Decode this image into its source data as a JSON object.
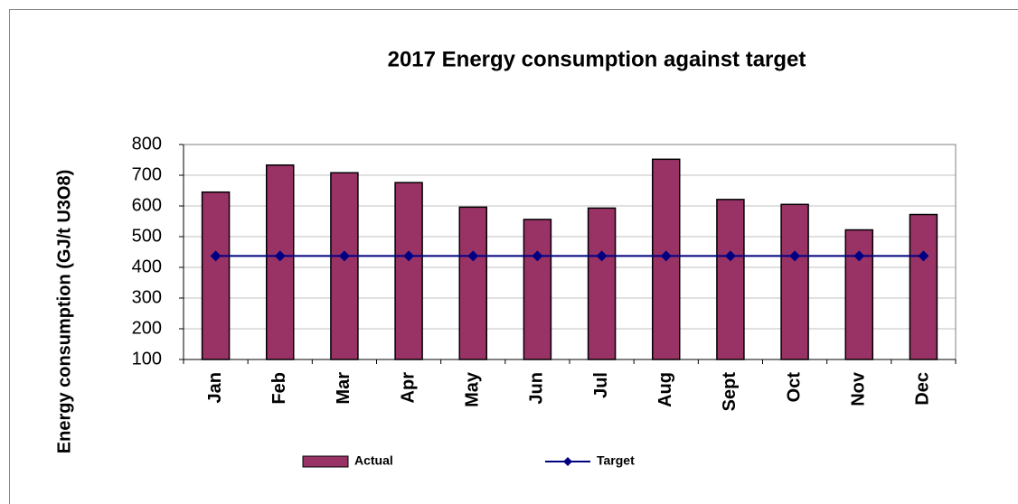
{
  "chart_data": {
    "type": "bar",
    "title": "2017 Energy consumption against  target",
    "ylabel": "Energy consumption (GJ/t U3O8)",
    "categories": [
      "Jan",
      "Feb",
      "Mar",
      "Apr",
      "May",
      "Jun",
      "Jul",
      "Aug",
      "Sept",
      "Oct",
      "Nov",
      "Dec"
    ],
    "series": [
      {
        "name": "Actual",
        "type": "bar",
        "color": "#993366",
        "values": [
          645,
          733,
          708,
          676,
          596,
          556,
          593,
          752,
          621,
          605,
          522,
          572
        ]
      },
      {
        "name": "Target",
        "type": "line",
        "color": "#000080",
        "values": [
          437,
          437,
          437,
          437,
          437,
          437,
          437,
          437,
          437,
          437,
          437,
          437
        ]
      }
    ],
    "ylim": [
      100,
      800
    ],
    "yticks": [
      100,
      200,
      300,
      400,
      500,
      600,
      700,
      800
    ],
    "grid": true,
    "legend": "bottom"
  }
}
